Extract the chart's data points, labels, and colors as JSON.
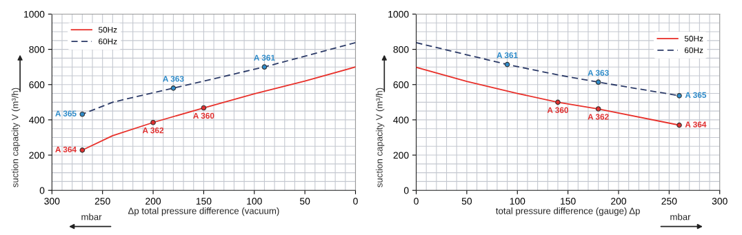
{
  "chart_data": [
    {
      "type": "line",
      "xlabel": "Δp total pressure difference (vacuum)",
      "ylabel": "suction capacity V (m³/h)",
      "xlim": [
        300,
        0
      ],
      "xticks": [
        300,
        250,
        200,
        150,
        100,
        50,
        0
      ],
      "ylim": [
        0,
        1000
      ],
      "yticks": [
        0,
        200,
        400,
        600,
        800,
        1000
      ],
      "grid": true,
      "legend": "top left",
      "annotations": [
        "mbar"
      ],
      "series": [
        {
          "name": "50Hz",
          "color": "#e8302a",
          "line_style": "solid",
          "x": [
            0,
            50,
            100,
            150,
            200,
            240,
            270
          ],
          "values": [
            700,
            620,
            548,
            468,
            385,
            310,
            228
          ]
        },
        {
          "name": "60Hz",
          "color": "#2b3a67",
          "line_style": "dashed",
          "x": [
            0,
            90,
            180,
            240,
            270
          ],
          "values": [
            838,
            700,
            580,
            500,
            432
          ]
        },
        {
          "type": "scatter",
          "color": "#e03030",
          "marker": "circle",
          "x": [
            150,
            200,
            270
          ],
          "values": [
            468,
            385,
            228
          ],
          "value_labels": [
            "A 360",
            "A 362",
            "A 364"
          ]
        },
        {
          "type": "scatter",
          "color": "#2e8bc9",
          "marker": "circle",
          "x": [
            90,
            180,
            270
          ],
          "values": [
            700,
            580,
            432
          ],
          "value_labels": [
            "A 361",
            "A 363",
            "A 365"
          ]
        }
      ]
    },
    {
      "type": "line",
      "xlabel": "total pressure difference (gauge) Δp",
      "ylabel": "suction capacity V (m³/h)",
      "xlim": [
        0,
        300
      ],
      "xticks": [
        0,
        50,
        100,
        150,
        200,
        250,
        300
      ],
      "ylim": [
        0,
        1000
      ],
      "yticks": [
        0,
        200,
        400,
        600,
        800,
        1000
      ],
      "grid": true,
      "legend": "top right",
      "annotations": [
        "mbar"
      ],
      "series": [
        {
          "name": "50Hz",
          "color": "#e8302a",
          "line_style": "solid",
          "x": [
            0,
            50,
            100,
            140,
            180,
            260
          ],
          "values": [
            698,
            618,
            550,
            500,
            462,
            370
          ]
        },
        {
          "name": "60Hz",
          "color": "#2b3a67",
          "line_style": "dashed",
          "x": [
            0,
            90,
            140,
            180,
            260
          ],
          "values": [
            838,
            714,
            655,
            614,
            537
          ]
        },
        {
          "type": "scatter",
          "color": "#e03030",
          "marker": "circle",
          "x": [
            140,
            180,
            260
          ],
          "values": [
            500,
            462,
            370
          ],
          "value_labels": [
            "A 360",
            "A 362",
            "A 364"
          ]
        },
        {
          "type": "scatter",
          "color": "#2e8bc9",
          "marker": "circle",
          "x": [
            90,
            180,
            260
          ],
          "values": [
            714,
            614,
            537
          ],
          "value_labels": [
            "A 361",
            "A 363",
            "A 365"
          ]
        }
      ]
    }
  ]
}
